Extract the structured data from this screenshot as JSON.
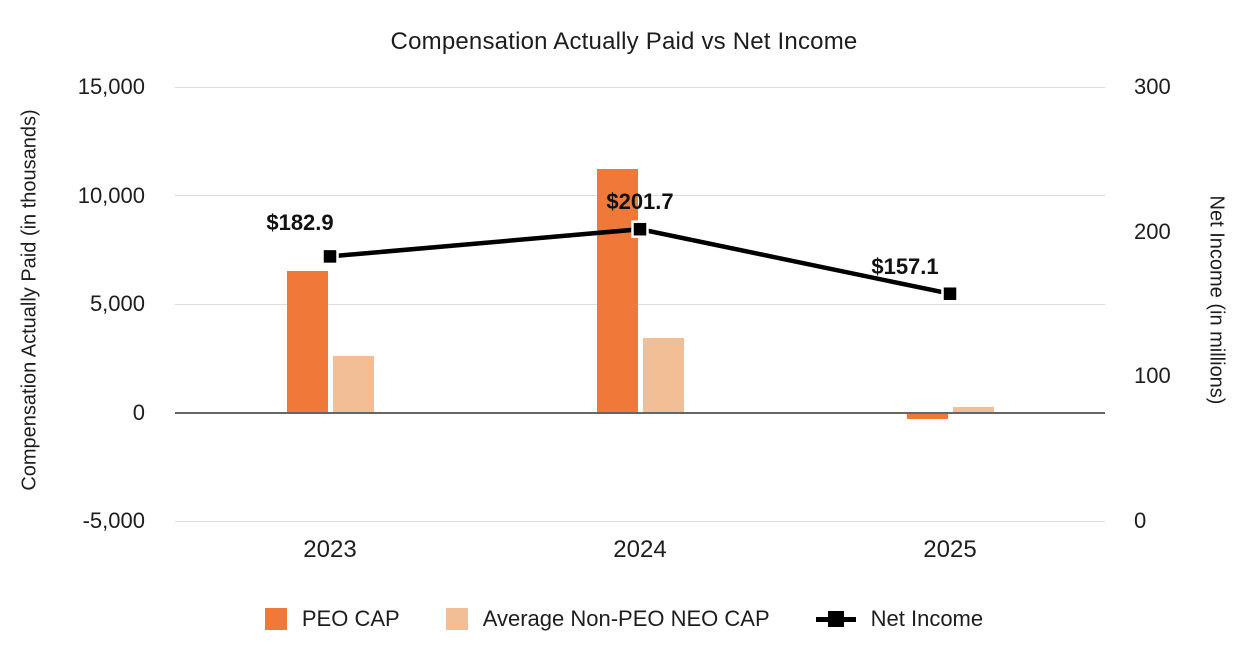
{
  "chart_data": {
    "type": "bar+line combo",
    "title": "Compensation Actually Paid vs Net Income",
    "categories": [
      "2023",
      "2024",
      "2025"
    ],
    "series": [
      {
        "name": "PEO CAP",
        "type": "bar",
        "axis": "left",
        "color": "#F0793A",
        "values": [
          6500,
          11200,
          -300
        ]
      },
      {
        "name": "Average Non-PEO NEO CAP",
        "type": "bar",
        "axis": "left",
        "color": "#F2BE95",
        "values": [
          2600,
          3450,
          250
        ]
      },
      {
        "name": "Net Income",
        "type": "line",
        "axis": "right",
        "color": "#000000",
        "values": [
          182.9,
          201.7,
          157.1
        ],
        "point_labels": [
          "$182.9",
          "$201.7",
          "$157.1"
        ]
      }
    ],
    "axes": {
      "left": {
        "title": "Compensation Actually Paid (in thousands)",
        "range": [
          -5000,
          15000
        ],
        "tick_values": [
          15000,
          10000,
          5000,
          0,
          -5000
        ],
        "ticks": [
          "15,000",
          "10,000",
          "5,000",
          "0",
          "-5,000"
        ]
      },
      "right": {
        "title": "Net Income (in millions)",
        "range": [
          0,
          300
        ],
        "tick_values": [
          300,
          200,
          100,
          0
        ],
        "ticks": [
          "300",
          "200",
          "100",
          "0"
        ]
      }
    },
    "grid": "horizontal only",
    "legend_position": "bottom center",
    "colors": {
      "gridline": "#DCDCDC",
      "zero_baseline": "#666666",
      "text": "#1D1D1D",
      "background": "#FFFFFF"
    }
  }
}
